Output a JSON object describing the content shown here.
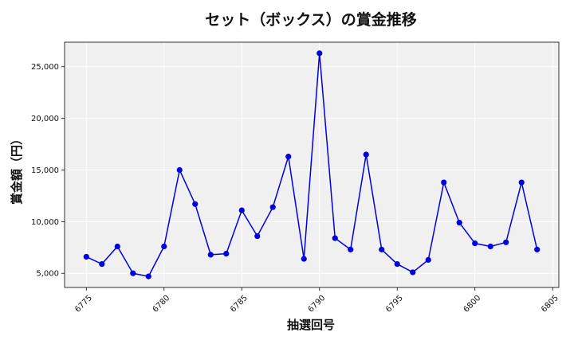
{
  "chart_data": {
    "type": "line",
    "title": "セット（ボックス）の賞金推移",
    "xlabel": "抽選回号",
    "ylabel": "賞金額（円）",
    "x": [
      6775,
      6776,
      6777,
      6778,
      6779,
      6780,
      6781,
      6782,
      6783,
      6784,
      6785,
      6786,
      6787,
      6788,
      6789,
      6790,
      6791,
      6792,
      6793,
      6794,
      6795,
      6796,
      6797,
      6798,
      6799,
      6800,
      6801,
      6802,
      6803,
      6804
    ],
    "series": [
      {
        "values": [
          6600,
          5900,
          7600,
          5000,
          4700,
          7600,
          15000,
          11700,
          6800,
          6900,
          11100,
          8600,
          11400,
          16300,
          6400,
          26300,
          8400,
          7300,
          16500,
          7300,
          5900,
          5100,
          6300,
          13800,
          9900,
          7900,
          7600,
          8000,
          13800,
          7300
        ],
        "color": "#0000dd"
      }
    ],
    "xticks": [
      6775,
      6780,
      6785,
      6790,
      6795,
      6800,
      6805
    ],
    "xtick_labels": [
      "6775",
      "6780",
      "6785",
      "6790",
      "6795",
      "6800",
      "6805"
    ],
    "yticks": [
      5000,
      10000,
      15000,
      20000,
      25000
    ],
    "ytick_labels": [
      "5,000",
      "10,000",
      "15,000",
      "20,000",
      "25,000"
    ],
    "xlim": [
      6773.6,
      6805.4
    ],
    "ylim": [
      3630,
      27370
    ],
    "grid": true,
    "background": "#f0f0f0",
    "grid_color": "#ffffff"
  }
}
